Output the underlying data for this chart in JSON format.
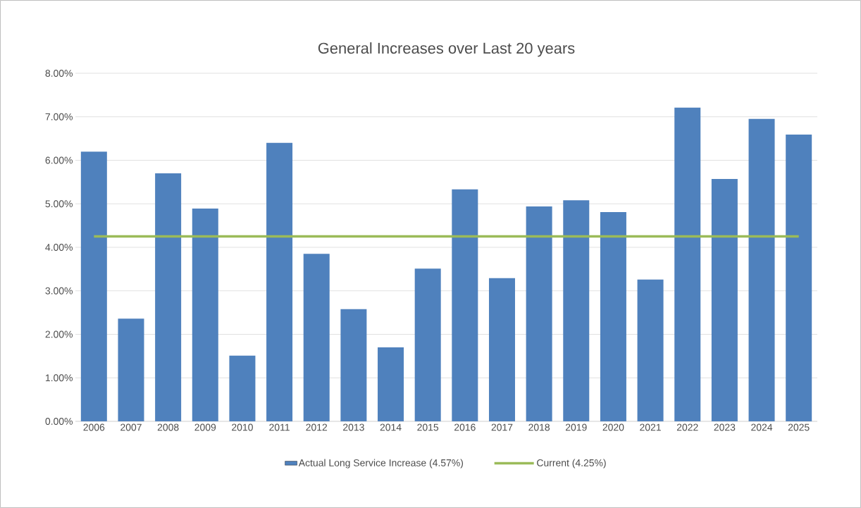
{
  "chart_data": {
    "type": "bar",
    "title": "General Increases over Last 20 years",
    "categories": [
      "2006",
      "2007",
      "2008",
      "2009",
      "2010",
      "2011",
      "2012",
      "2013",
      "2014",
      "2015",
      "2016",
      "2017",
      "2018",
      "2019",
      "2020",
      "2021",
      "2022",
      "2023",
      "2024",
      "2025"
    ],
    "series": [
      {
        "name": "Actual Long Service Increase (4.57%)",
        "color": "#4f81bd",
        "values": [
          6.2,
          2.36,
          5.7,
          4.89,
          1.51,
          6.4,
          3.85,
          2.58,
          1.7,
          3.51,
          5.33,
          3.29,
          4.94,
          5.08,
          4.81,
          3.26,
          7.21,
          5.57,
          6.95,
          6.59
        ]
      },
      {
        "name": "Current (4.25%)",
        "type": "line",
        "color": "#9bbb59",
        "values": [
          4.25,
          4.25,
          4.25,
          4.25,
          4.25,
          4.25,
          4.25,
          4.25,
          4.25,
          4.25,
          4.25,
          4.25,
          4.25,
          4.25,
          4.25,
          4.25,
          4.25,
          4.25,
          4.25,
          4.25
        ]
      }
    ],
    "ylim": [
      0,
      8
    ],
    "yticks": [
      {
        "value": 0,
        "label": "0.00%"
      },
      {
        "value": 1,
        "label": "1.00%"
      },
      {
        "value": 2,
        "label": "2.00%"
      },
      {
        "value": 3,
        "label": "3.00%"
      },
      {
        "value": 4,
        "label": "4.00%"
      },
      {
        "value": 5,
        "label": "5.00%"
      },
      {
        "value": 6,
        "label": "6.00%"
      },
      {
        "value": 7,
        "label": "7.00%"
      },
      {
        "value": 8,
        "label": "8.00%"
      }
    ],
    "grid": "y",
    "legend": "bottom"
  }
}
